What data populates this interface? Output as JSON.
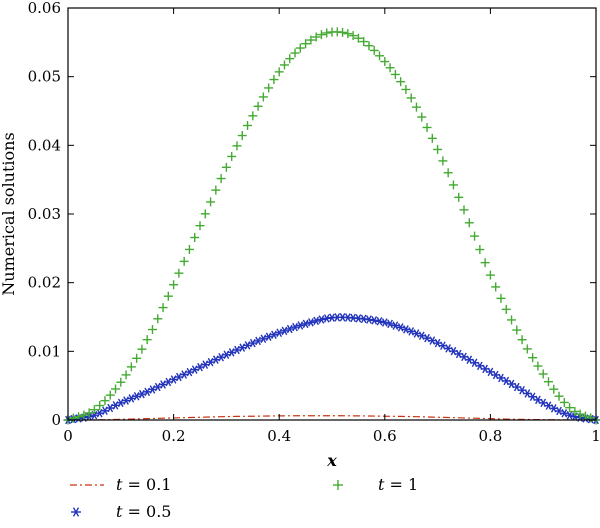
{
  "chart_data": {
    "type": "scatter",
    "xlabel": "x",
    "ylabel": "Numerical solutions",
    "xlim": [
      0,
      1
    ],
    "ylim": [
      0,
      0.06
    ],
    "x_ticks": [
      0,
      0.2,
      0.4,
      0.6,
      0.8,
      1
    ],
    "x_tick_labels": [
      "0",
      "0.2",
      "0.4",
      "0.6",
      "0.8",
      "1"
    ],
    "y_ticks": [
      0,
      0.01,
      0.02,
      0.03,
      0.04,
      0.05,
      0.06
    ],
    "y_tick_labels": [
      "0",
      "0.01",
      "0.02",
      "0.03",
      "0.04",
      "0.05",
      "0.06"
    ],
    "grid": false,
    "legend_position": "bottom",
    "x": [
      0,
      0.05,
      0.1,
      0.15,
      0.2,
      0.25,
      0.3,
      0.35,
      0.4,
      0.45,
      0.5,
      0.55,
      0.6,
      0.65,
      0.7,
      0.75,
      0.8,
      0.85,
      0.9,
      0.95,
      1
    ],
    "series": [
      {
        "name": "t = 0.1",
        "label_var": "t",
        "label_rest": " = 0.1",
        "marker": "dash-dot line",
        "color": "#cc3311",
        "values": [
          0,
          2e-05,
          0.0001,
          0.0002,
          0.0003,
          0.0004,
          0.0005,
          0.00055,
          0.0006,
          0.00062,
          0.00062,
          0.0006,
          0.00055,
          0.0005,
          0.0004,
          0.0003,
          0.0002,
          0.0001,
          5e-05,
          2e-05,
          0
        ]
      },
      {
        "name": "t = 0.5",
        "label_var": "t",
        "label_rest": " = 0.5",
        "marker": "asterisk",
        "color": "#2233bb",
        "values": [
          0,
          0.0007,
          0.0025,
          0.0041,
          0.0059,
          0.0077,
          0.0095,
          0.0112,
          0.0127,
          0.014,
          0.0149,
          0.0148,
          0.0142,
          0.0129,
          0.0112,
          0.0092,
          0.007,
          0.0048,
          0.0025,
          0.0007,
          0
        ]
      },
      {
        "name": "t = 1",
        "label_var": "t",
        "label_rest": " = 1",
        "marker": "plus",
        "color": "#44aa33",
        "values": [
          0,
          0.0015,
          0.0055,
          0.0117,
          0.0197,
          0.0283,
          0.0368,
          0.0443,
          0.0507,
          0.0548,
          0.0565,
          0.0556,
          0.0522,
          0.0469,
          0.0394,
          0.0306,
          0.0211,
          0.0131,
          0.0067,
          0.0018,
          0
        ]
      }
    ]
  }
}
